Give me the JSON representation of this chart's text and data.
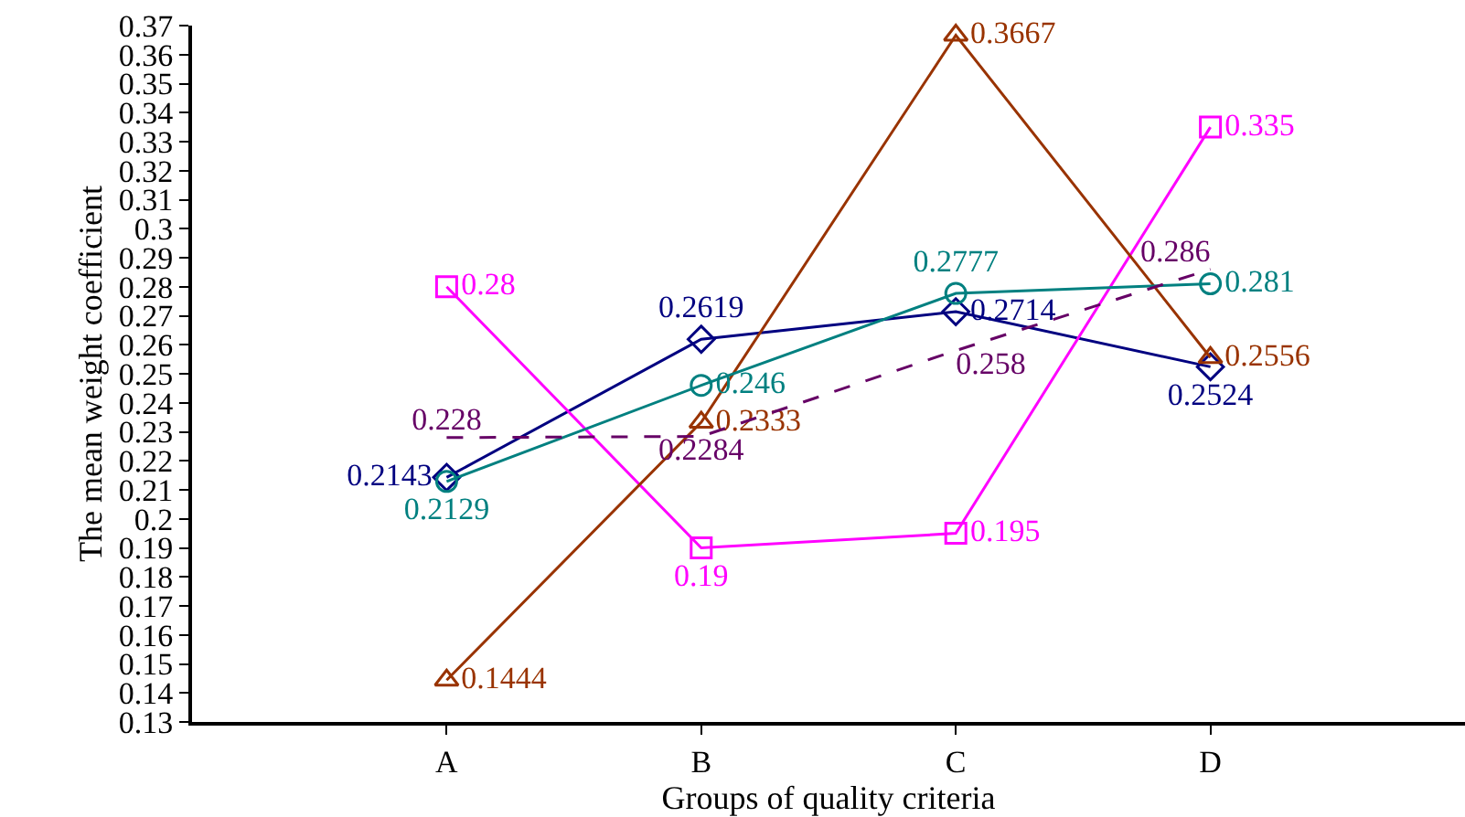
{
  "chart_data": {
    "type": "line",
    "xlabel": "Groups of quality criteria",
    "ylabel": "The mean weight coefficient",
    "categories": [
      "A",
      "B",
      "C",
      "D"
    ],
    "series": [
      {
        "color": "#000080",
        "marker": "diamond",
        "line_style": "solid",
        "values": [
          0.2143,
          0.2619,
          0.2714,
          0.2524
        ]
      },
      {
        "color": "#ff00ff",
        "marker": "square",
        "line_style": "solid",
        "values": [
          0.28,
          0.19,
          0.195,
          0.335
        ]
      },
      {
        "color": "#993300",
        "marker": "triangle",
        "line_style": "solid",
        "values": [
          0.1444,
          0.2333,
          0.3667,
          0.2556
        ]
      },
      {
        "color": "#008080",
        "marker": "circle",
        "line_style": "solid",
        "values": [
          0.2129,
          0.246,
          0.2777,
          0.281
        ]
      },
      {
        "color": "#660066",
        "marker": "none",
        "line_style": "dashed",
        "values": [
          0.228,
          0.2284,
          0.258,
          0.286
        ]
      }
    ],
    "ylim": [
      0.13,
      0.37
    ],
    "yticks": [
      0.13,
      0.14,
      0.15,
      0.16,
      0.17,
      0.18,
      0.19,
      0.2,
      0.21,
      0.22,
      0.23,
      0.24,
      0.25,
      0.26,
      0.27,
      0.28,
      0.29,
      0.3,
      0.31,
      0.32,
      0.33,
      0.34,
      0.35,
      0.36,
      0.37
    ],
    "data_labels": true
  }
}
